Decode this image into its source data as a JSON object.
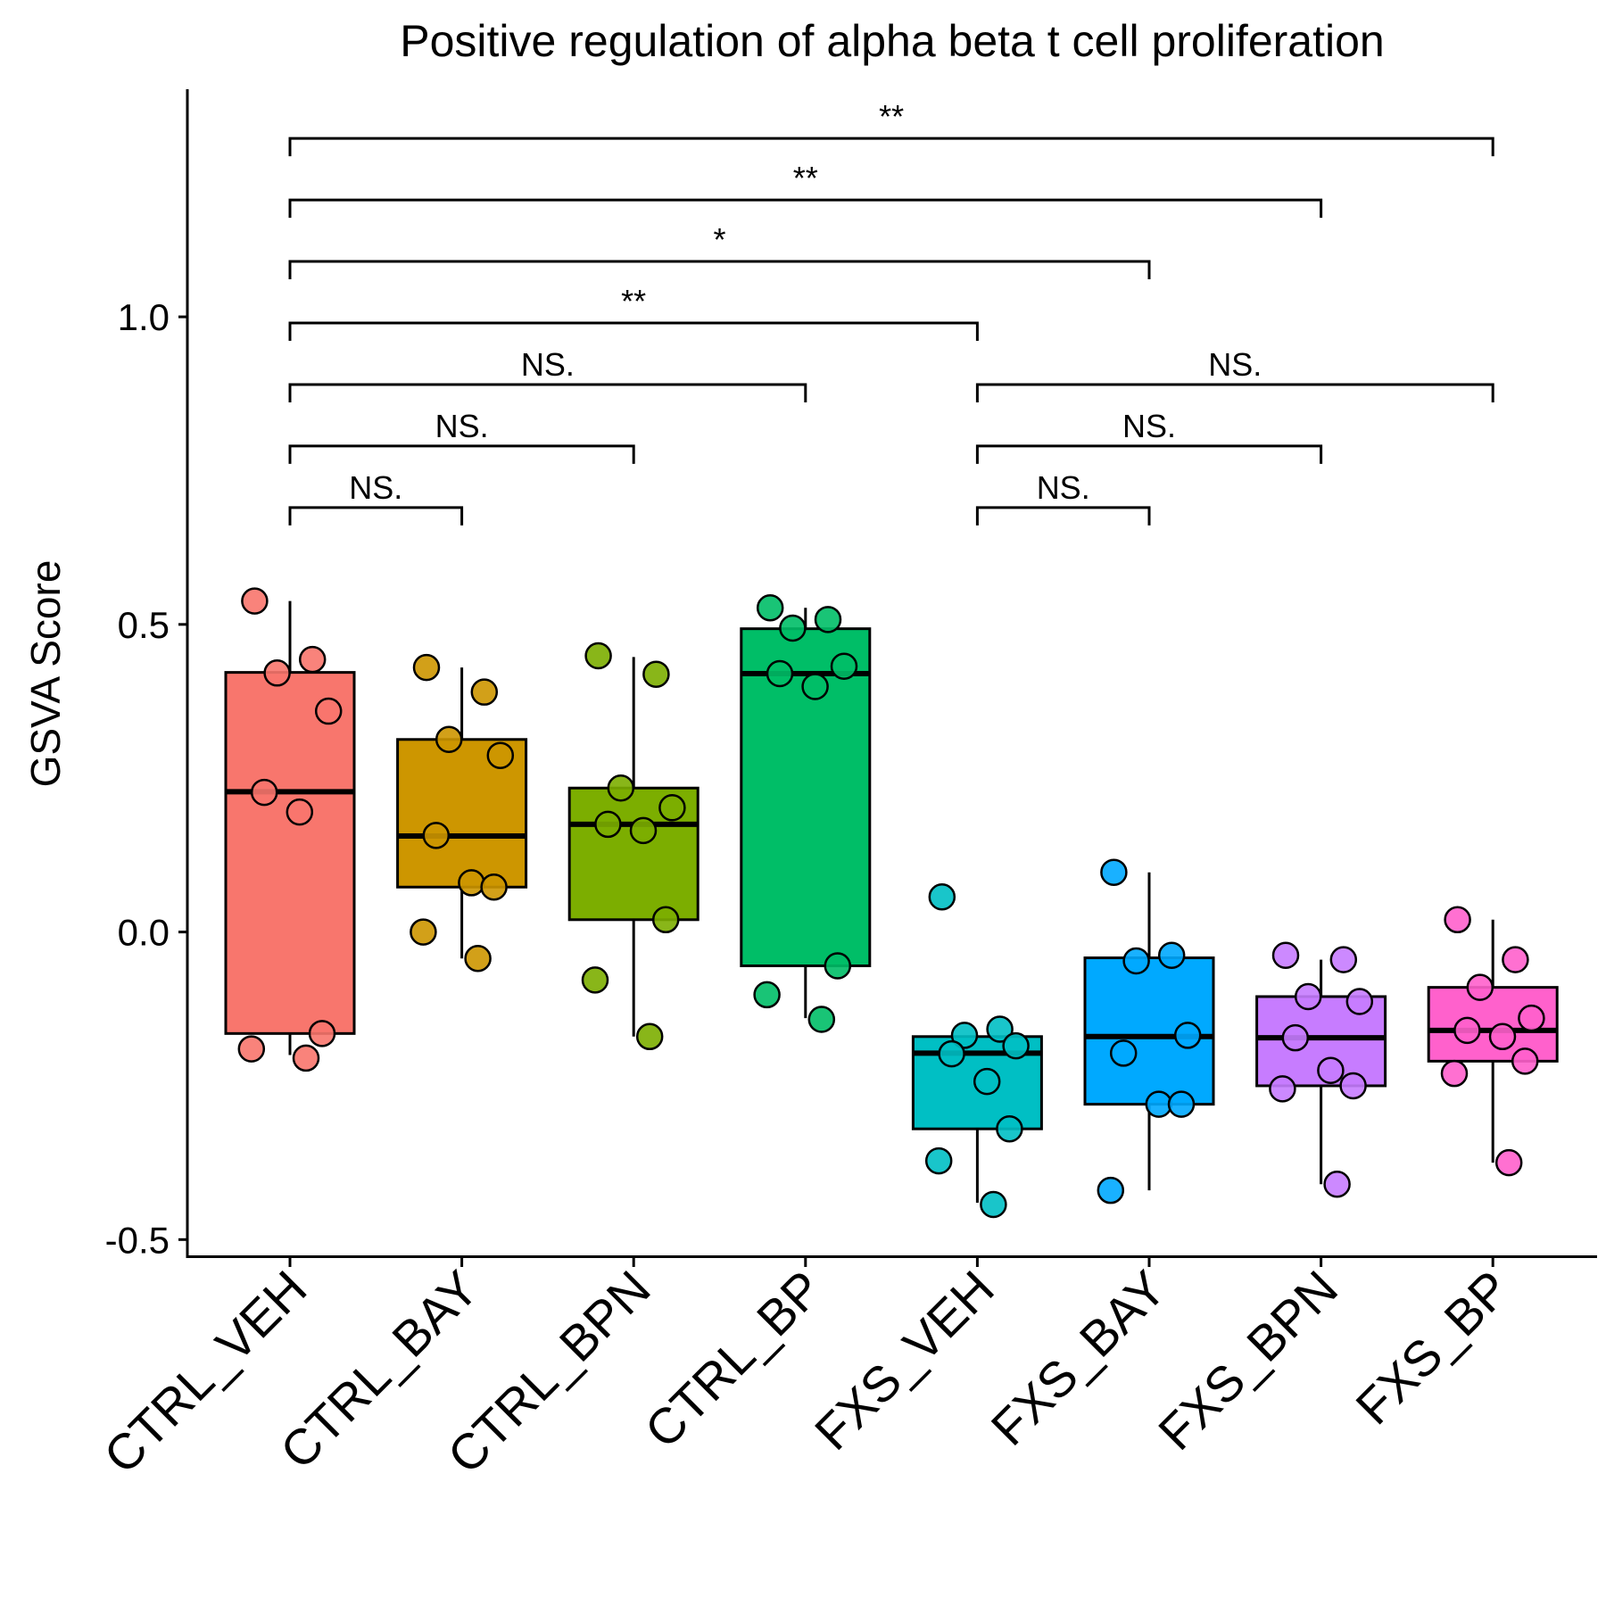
{
  "chart_data": {
    "type": "boxplot",
    "title": "Positive regulation of alpha beta t cell proliferation",
    "xlabel": "",
    "ylabel": "GSVA Score",
    "ylim": [
      -0.53,
      1.37
    ],
    "yticks": [
      "-0.5",
      "0.0",
      "0.5",
      "1.0"
    ],
    "yticks_values": [
      -0.5,
      0.0,
      0.5,
      1.0
    ],
    "grid": false,
    "legend": "none",
    "categories": [
      "CTRL_VEH",
      "CTRL_BAY",
      "CTRL_BPN",
      "CTRL_BP",
      "FXS_VEH",
      "FXS_BAY",
      "FXS_BPN",
      "FXS_BP"
    ],
    "series": [
      {
        "category": "CTRL_VEH",
        "color": "#F8766D",
        "box": {
          "whisker_low": -0.2,
          "q1": -0.165,
          "median": 0.228,
          "q3": 0.422,
          "whisker_high": 0.538
        },
        "points": [
          0.538,
          0.443,
          0.421,
          0.359,
          0.227,
          0.195,
          -0.165,
          -0.19,
          -0.205
        ]
      },
      {
        "category": "CTRL_BAY",
        "color": "#CD9600",
        "box": {
          "whisker_low": -0.043,
          "q1": 0.073,
          "median": 0.156,
          "q3": 0.313,
          "whisker_high": 0.43
        },
        "points": [
          0.43,
          0.39,
          0.313,
          0.287,
          0.157,
          0.08,
          0.073,
          0.0,
          -0.043
        ]
      },
      {
        "category": "CTRL_BPN",
        "color": "#7CAE00",
        "box": {
          "whisker_low": -0.17,
          "q1": 0.02,
          "median": 0.175,
          "q3": 0.234,
          "whisker_high": 0.447
        },
        "points": [
          0.449,
          0.419,
          0.234,
          0.202,
          0.175,
          0.165,
          0.02,
          -0.078,
          -0.17
        ]
      },
      {
        "category": "CTRL_BP",
        "color": "#00BE67",
        "box": {
          "whisker_low": -0.14,
          "q1": -0.055,
          "median": 0.42,
          "q3": 0.493,
          "whisker_high": 0.527
        },
        "points": [
          0.527,
          0.508,
          0.494,
          0.432,
          0.42,
          0.399,
          -0.055,
          -0.102,
          -0.142
        ]
      },
      {
        "category": "FXS_VEH",
        "color": "#00BFC4",
        "box": {
          "whisker_low": -0.44,
          "q1": -0.32,
          "median": -0.197,
          "q3": -0.17,
          "whisker_high": -0.17
        },
        "points": [
          0.057,
          -0.158,
          -0.168,
          -0.185,
          -0.198,
          -0.243,
          -0.32,
          -0.372,
          -0.443
        ]
      },
      {
        "category": "FXS_BAY",
        "color": "#00A9FF",
        "box": {
          "whisker_low": -0.42,
          "q1": -0.28,
          "median": -0.17,
          "q3": -0.042,
          "whisker_high": 0.097
        },
        "points": [
          0.097,
          -0.038,
          -0.047,
          -0.168,
          -0.197,
          -0.28,
          -0.28,
          -0.42
        ]
      },
      {
        "category": "FXS_BPN",
        "color": "#C77CFF",
        "box": {
          "whisker_low": -0.41,
          "q1": -0.25,
          "median": -0.172,
          "q3": -0.105,
          "whisker_high": -0.045
        },
        "points": [
          -0.038,
          -0.045,
          -0.105,
          -0.113,
          -0.172,
          -0.225,
          -0.25,
          -0.255,
          -0.41
        ]
      },
      {
        "category": "FXS_BP",
        "color": "#FF61CC",
        "box": {
          "whisker_low": -0.375,
          "q1": -0.21,
          "median": -0.16,
          "q3": -0.09,
          "whisker_high": 0.02
        },
        "points": [
          0.02,
          -0.045,
          -0.09,
          -0.14,
          -0.16,
          -0.17,
          -0.21,
          -0.23,
          -0.375
        ]
      }
    ],
    "comparisons": [
      {
        "from": 0,
        "to": 1,
        "y": 0.69,
        "label": "NS."
      },
      {
        "from": 0,
        "to": 2,
        "y": 0.79,
        "label": "NS."
      },
      {
        "from": 0,
        "to": 3,
        "y": 0.89,
        "label": "NS."
      },
      {
        "from": 0,
        "to": 4,
        "y": 0.99,
        "label": "**"
      },
      {
        "from": 0,
        "to": 5,
        "y": 1.09,
        "label": "*"
      },
      {
        "from": 0,
        "to": 6,
        "y": 1.19,
        "label": "**"
      },
      {
        "from": 0,
        "to": 7,
        "y": 1.29,
        "label": "**"
      },
      {
        "from": 4,
        "to": 5,
        "y": 0.69,
        "label": "NS."
      },
      {
        "from": 4,
        "to": 6,
        "y": 0.79,
        "label": "NS."
      },
      {
        "from": 4,
        "to": 7,
        "y": 0.89,
        "label": "NS."
      }
    ]
  }
}
